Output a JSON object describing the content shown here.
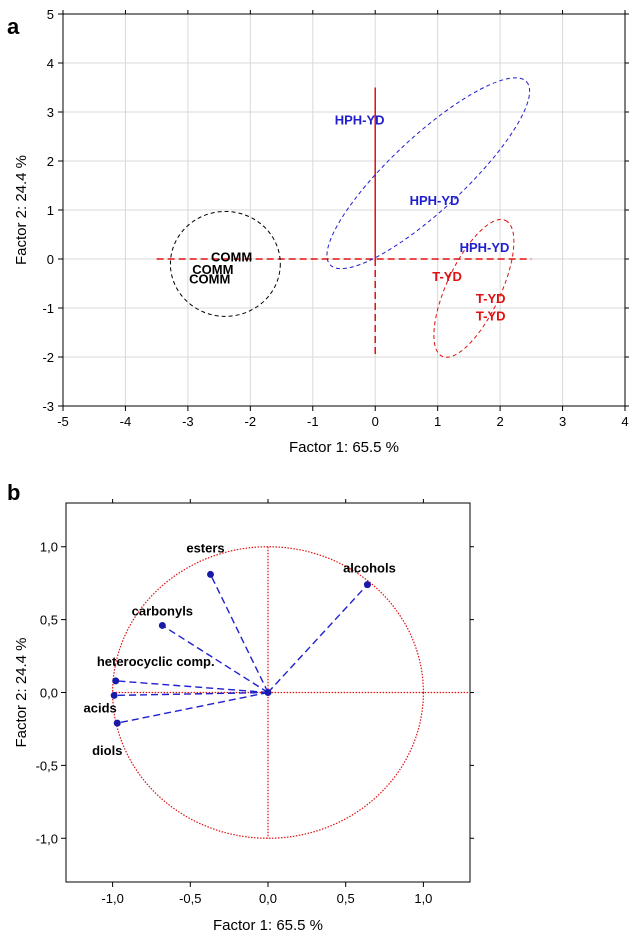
{
  "panels": {
    "a": {
      "letter": "a"
    },
    "b": {
      "letter": "b"
    }
  },
  "chart_data": [
    {
      "type": "scatter",
      "panel": "a",
      "xlabel": "Factor 1: 65.5 %",
      "ylabel": "Factor  2: 24.4 %",
      "xlim": [
        -5,
        4
      ],
      "ylim": [
        -3,
        5
      ],
      "xticks": [
        "-5",
        "-4",
        "-3",
        "-2",
        "-1",
        "0",
        "1",
        "2",
        "3",
        "4"
      ],
      "yticks": [
        "-3",
        "-2",
        "-1",
        "0",
        "1",
        "2",
        "3",
        "4",
        "5"
      ],
      "grid": true,
      "colors": {
        "COMM": "#000000",
        "HPH-YD": "#1f1fd0",
        "T-YD": "#e01010",
        "axes": "#e01010"
      },
      "points": [
        {
          "label": "COMM",
          "group": "COMM",
          "x": -2.3,
          "y": 0.05
        },
        {
          "label": "COMM",
          "group": "COMM",
          "x": -2.6,
          "y": -0.2
        },
        {
          "label": "COMM",
          "group": "COMM",
          "x": -2.65,
          "y": -0.4
        },
        {
          "label": "HPH-YD",
          "group": "HPH-YD",
          "x": -0.25,
          "y": 2.85
        },
        {
          "label": "HPH-YD",
          "group": "HPH-YD",
          "x": 0.95,
          "y": 1.2
        },
        {
          "label": "HPH-YD",
          "group": "HPH-YD",
          "x": 1.75,
          "y": 0.25
        },
        {
          "label": "T-YD",
          "group": "T-YD",
          "x": 1.15,
          "y": -0.35
        },
        {
          "label": "T-YD",
          "group": "T-YD",
          "x": 1.85,
          "y": -0.8
        },
        {
          "label": "T-YD",
          "group": "T-YD",
          "x": 1.85,
          "y": -1.15
        }
      ],
      "ellipses": [
        {
          "group": "COMM",
          "cx": -2.4,
          "cy": -0.1,
          "rx": 0.88,
          "ry": 1.07,
          "angle": 0
        },
        {
          "group": "HPH-YD",
          "cx": 0.85,
          "cy": 1.75,
          "rx": 2.15,
          "ry": 0.75,
          "angle": -43
        },
        {
          "group": "T-YD",
          "cx": 1.58,
          "cy": -0.6,
          "rx": 1.2,
          "ry": 0.55,
          "angle": -65
        }
      ],
      "axis_lines": [
        {
          "x1": -3.5,
          "y1": 0,
          "x2": 2.5,
          "y2": 0
        },
        {
          "x1": 0,
          "y1": -2,
          "x2": 0,
          "y2": 3.5
        }
      ]
    },
    {
      "type": "scatter",
      "panel": "b",
      "xlabel": "Factor 1: 65.5 %",
      "ylabel": "Factor  2: 24.4 %",
      "xlim": [
        -1.3,
        1.3
      ],
      "ylim": [
        -1.3,
        1.3
      ],
      "xticks": [
        "-1,0",
        "-0,5",
        "0,0",
        "0,5",
        "1,0"
      ],
      "yticks": [
        "-1,0",
        "-0,5",
        "0,0",
        "0,5",
        "1,0"
      ],
      "grid": false,
      "colors": {
        "vectors": "#1f1fd0",
        "circle": "#e01010",
        "labels": "#000000"
      },
      "unit_circle_radius": 1.0,
      "vectors": [
        {
          "label": "esters",
          "x": -0.37,
          "y": 0.81
        },
        {
          "label": "alcohols",
          "x": 0.64,
          "y": 0.74
        },
        {
          "label": "carbonyls",
          "x": -0.68,
          "y": 0.46
        },
        {
          "label": "heterocyclic comp.",
          "x": -0.98,
          "y": 0.08
        },
        {
          "label": "acids",
          "x": -0.99,
          "y": -0.02
        },
        {
          "label": "diols",
          "x": -0.97,
          "y": -0.21
        }
      ]
    }
  ]
}
